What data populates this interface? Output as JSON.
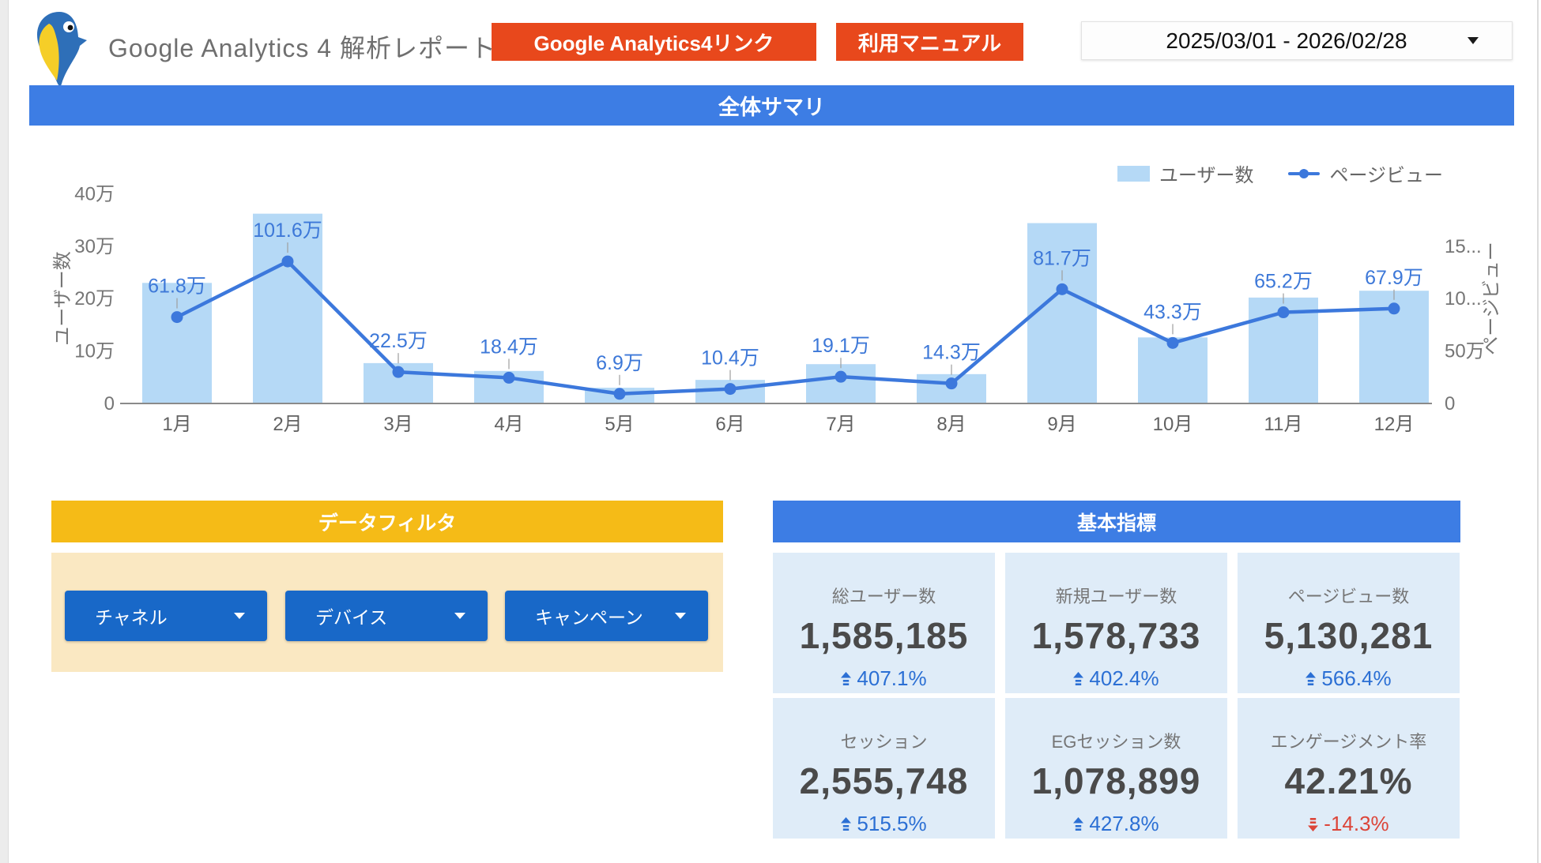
{
  "header": {
    "title": "Google Analytics 4 解析レポート",
    "logo": "bird-logo",
    "ga_link_button": "Google Analytics4リンク",
    "manual_button": "利用マニュアル",
    "date_range": "2025/03/01 - 2026/02/28"
  },
  "summary": {
    "banner": "全体サマリ"
  },
  "chart_data": {
    "type": "combo",
    "title": "全体サマリ",
    "categories": [
      "1月",
      "2月",
      "3月",
      "4月",
      "5月",
      "6月",
      "7月",
      "8月",
      "9月",
      "10月",
      "11月",
      "12月"
    ],
    "series": [
      {
        "name": "ユーザー数",
        "type": "bar",
        "axis": "left",
        "unit": "万",
        "values": [
          23.0,
          36.2,
          7.7,
          6.2,
          3.0,
          4.5,
          7.5,
          5.6,
          34.4,
          12.6,
          20.2,
          21.5
        ]
      },
      {
        "name": "ページビュー",
        "type": "line",
        "axis": "right",
        "unit": "万",
        "values": [
          61.8,
          101.6,
          22.5,
          18.4,
          6.9,
          10.4,
          19.1,
          14.3,
          81.7,
          43.3,
          65.2,
          67.9
        ],
        "labels": [
          "61.8万",
          "101.6万",
          "22.5万",
          "18.4万",
          "6.9万",
          "10.4万",
          "19.1万",
          "14.3万",
          "81.7万",
          "43.3万",
          "65.2万",
          "67.9万"
        ]
      }
    ],
    "left_axis": {
      "label": "ユーザー数",
      "ticks": [
        "0",
        "10万",
        "20万",
        "30万",
        "40万"
      ],
      "max": 40
    },
    "right_axis": {
      "label": "ページビュー",
      "ticks": [
        "0",
        "50万",
        "10...",
        "15..."
      ],
      "max": 150
    },
    "legend_position": "top-right",
    "grid": false
  },
  "filters": {
    "banner": "データフィルタ",
    "items": [
      {
        "label": "チャネル"
      },
      {
        "label": "デバイス"
      },
      {
        "label": "キャンペーン"
      }
    ]
  },
  "metrics": {
    "banner": "基本指標",
    "cards": [
      {
        "label": "総ユーザー数",
        "value": "1,585,185",
        "delta": "407.1%",
        "direction": "up"
      },
      {
        "label": "新規ユーザー数",
        "value": "1,578,733",
        "delta": "402.4%",
        "direction": "up"
      },
      {
        "label": "ページビュー数",
        "value": "5,130,281",
        "delta": "566.4%",
        "direction": "up"
      },
      {
        "label": "セッション",
        "value": "2,555,748",
        "delta": "515.5%",
        "direction": "up"
      },
      {
        "label": "EGセッション数",
        "value": "1,078,899",
        "delta": "427.8%",
        "direction": "up"
      },
      {
        "label": "エンゲージメント率",
        "value": "42.21%",
        "delta": "-14.3%",
        "direction": "down"
      }
    ]
  },
  "colors": {
    "banner_blue": "#3D7DE4",
    "button_orange": "#E8481C",
    "filter_yellow": "#F5BB17",
    "filter_panel_beige": "#FAE8C2",
    "dropdown_blue": "#1868C8",
    "bar_fill": "#B5D9F6",
    "line_blue": "#3C78DC",
    "card_bg": "#DFECF8",
    "delta_up": "#2B6FD4",
    "delta_down": "#DC4539",
    "axis_text": "#757575",
    "value_text": "#4a4a4a"
  }
}
